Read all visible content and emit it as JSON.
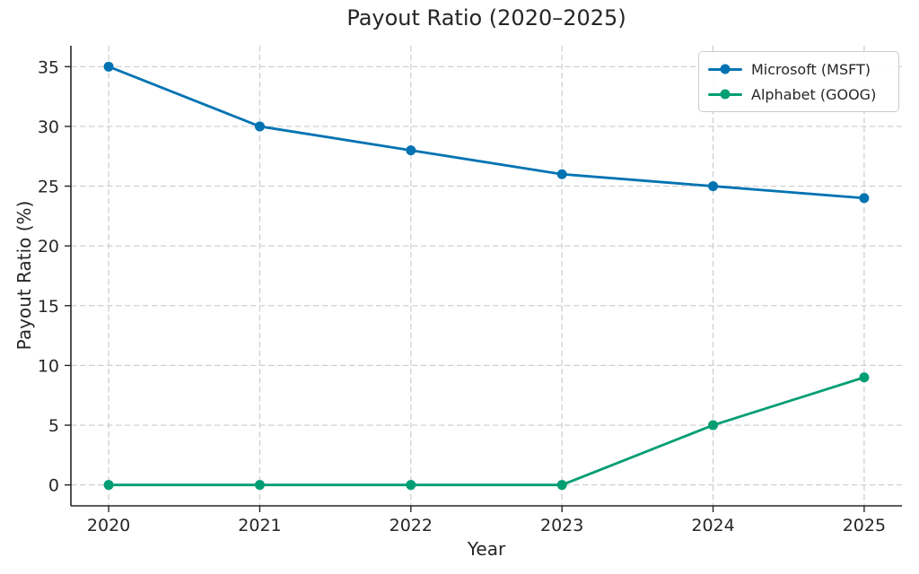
{
  "chart_data": {
    "type": "line",
    "title": "Payout Ratio (2020–2025)",
    "xlabel": "Year",
    "ylabel": "Payout Ratio (%)",
    "x": [
      2020,
      2021,
      2022,
      2023,
      2024,
      2025
    ],
    "xticks": [
      2020,
      2021,
      2022,
      2023,
      2024,
      2025
    ],
    "yticks": [
      0,
      5,
      10,
      15,
      20,
      25,
      30,
      35
    ],
    "xlim": [
      2019.75,
      2025.25
    ],
    "ylim": [
      -1.75,
      36.75
    ],
    "grid": true,
    "grid_style": "dashed",
    "legend_position": "upper right",
    "series": [
      {
        "id": "msft",
        "name": "Microsoft (MSFT)",
        "color": "#0173b2",
        "values": [
          35,
          30,
          28,
          26,
          25,
          24
        ]
      },
      {
        "id": "goog",
        "name": "Alphabet (GOOG)",
        "color": "#029e73",
        "values": [
          0,
          0,
          0,
          0,
          5,
          9
        ]
      }
    ],
    "styles": {
      "grid_color": "#cccccc",
      "spine_color": "#262626",
      "text_color": "#262626",
      "background": "#ffffff",
      "line_width": 2.8,
      "marker_radius": 5.5
    }
  }
}
